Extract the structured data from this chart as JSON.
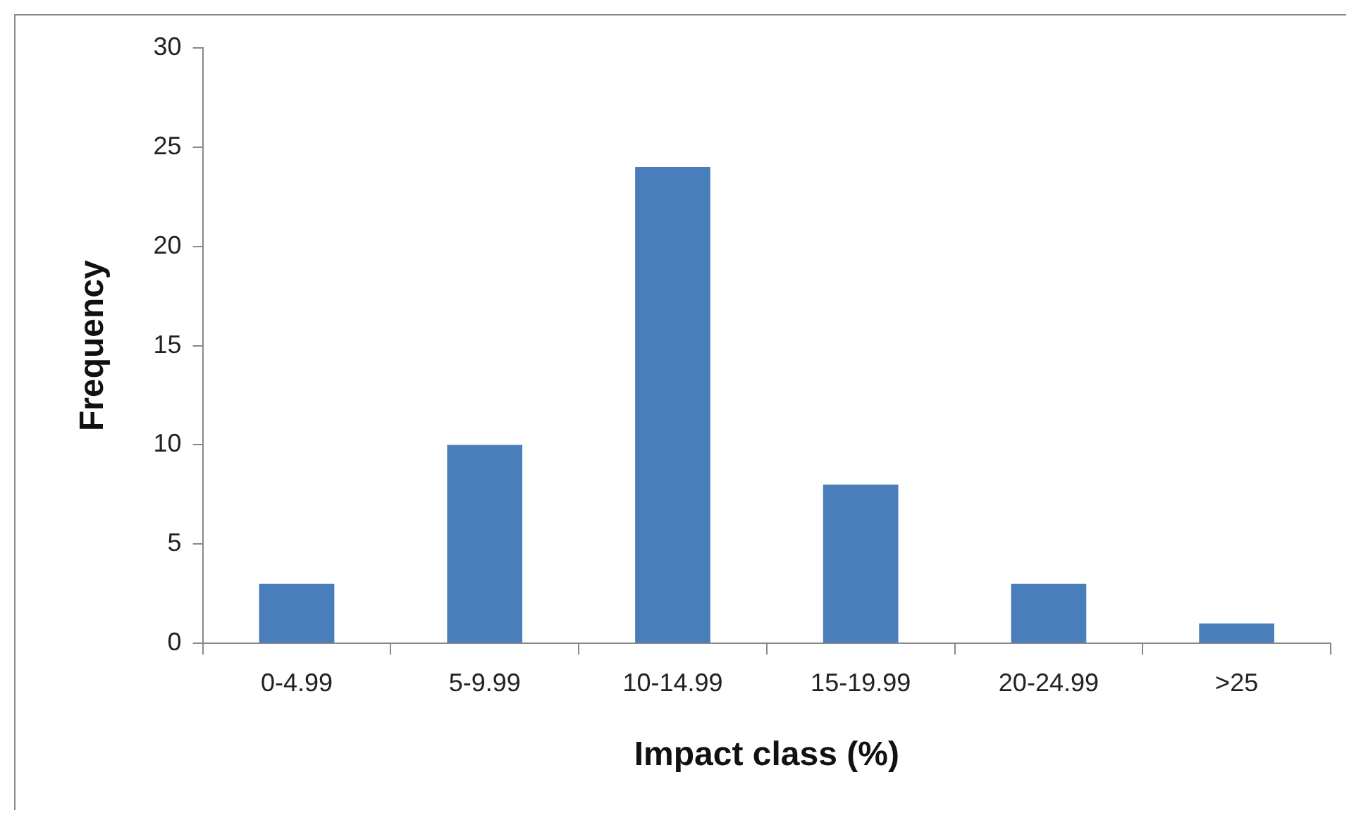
{
  "chart_data": {
    "type": "bar",
    "xlabel": "Impact class (%)",
    "ylabel": "Frequency",
    "categories": [
      "0-4.99",
      "5-9.99",
      "10-14.99",
      "15-19.99",
      "20-24.99",
      ">25"
    ],
    "values": [
      3,
      10,
      24,
      8,
      3,
      1
    ],
    "color": "#4a7ebb",
    "ylim": [
      0,
      30
    ],
    "yticks": [
      0,
      5,
      10,
      15,
      20,
      25,
      30
    ],
    "grid": false,
    "legend": false
  }
}
